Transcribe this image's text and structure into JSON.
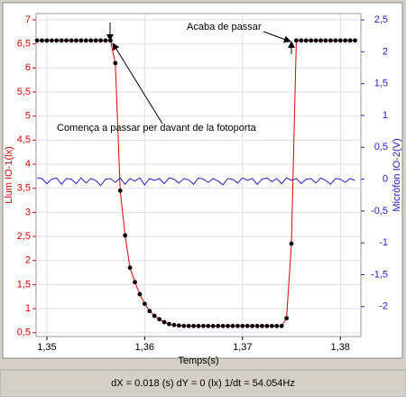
{
  "chart_data": {
    "type": "line",
    "x_label": "Temps(s)",
    "y_label": "Llum IO-1(lx)",
    "y2_label": "Micròfon IO-2(V)",
    "status": "dX = 0.018 (s) dY = 0 (lx)  1/dt = 54.054Hz",
    "annotations": [
      "Acaba de passar",
      "Comença a passar per davant de la fotoporta"
    ],
    "grid": true,
    "x": [
      1.349,
      1.3495,
      1.35,
      1.3505,
      1.351,
      1.3515,
      1.352,
      1.3525,
      1.353,
      1.3535,
      1.354,
      1.3545,
      1.355,
      1.3555,
      1.356,
      1.3565,
      1.357,
      1.3575,
      1.358,
      1.3585,
      1.359,
      1.3595,
      1.36,
      1.3605,
      1.361,
      1.3615,
      1.362,
      1.3625,
      1.363,
      1.3635,
      1.364,
      1.3645,
      1.365,
      1.3655,
      1.366,
      1.3665,
      1.367,
      1.3675,
      1.368,
      1.3685,
      1.369,
      1.3695,
      1.37,
      1.3705,
      1.371,
      1.3715,
      1.372,
      1.3725,
      1.373,
      1.3735,
      1.374,
      1.3745,
      1.375,
      1.3755,
      1.376,
      1.3765,
      1.377,
      1.3775,
      1.378,
      1.3785,
      1.379,
      1.3795,
      1.38,
      1.3805,
      1.381,
      1.3815
    ],
    "series": [
      {
        "name": "Llum IO-1(lx)",
        "color": "#e00000",
        "marker_color": "#000000",
        "values": [
          6.57,
          6.57,
          6.57,
          6.57,
          6.57,
          6.57,
          6.57,
          6.57,
          6.57,
          6.57,
          6.57,
          6.57,
          6.57,
          6.57,
          6.57,
          6.57,
          6.1,
          3.45,
          2.52,
          1.85,
          1.55,
          1.3,
          1.1,
          0.95,
          0.85,
          0.78,
          0.72,
          0.68,
          0.66,
          0.65,
          0.64,
          0.64,
          0.64,
          0.64,
          0.64,
          0.64,
          0.64,
          0.64,
          0.64,
          0.64,
          0.64,
          0.64,
          0.64,
          0.64,
          0.64,
          0.64,
          0.64,
          0.64,
          0.64,
          0.64,
          0.64,
          0.8,
          2.35,
          6.57,
          6.57,
          6.57,
          6.57,
          6.57,
          6.57,
          6.57,
          6.57,
          6.57,
          6.57,
          6.57,
          6.57,
          6.57
        ]
      },
      {
        "name": "Micròfon IO-2(V)",
        "color": "#2020c8",
        "axis": "y2",
        "values": [
          0.02,
          0.01,
          -0.07,
          0.0,
          0.02,
          -0.08,
          0.01,
          0.0,
          -0.07,
          0.02,
          -0.06,
          0.01,
          -0.02,
          -0.1,
          0.0,
          0.01,
          -0.05,
          0.02,
          -0.08,
          0.01,
          -0.03,
          0.02,
          -0.09,
          0.01,
          -0.02,
          0.01,
          -0.07,
          0.02,
          0.0,
          -0.06,
          0.01,
          -0.01,
          -0.08,
          0.02,
          0.0,
          -0.05,
          0.01,
          -0.03,
          -0.09,
          0.01,
          0.0,
          -0.06,
          0.02,
          -0.02,
          0.01,
          -0.08,
          0.0,
          0.02,
          -0.04,
          0.01,
          -0.07,
          0.02,
          -0.02,
          0.01,
          -0.07,
          0.0,
          0.01,
          -0.06,
          0.02,
          -0.02,
          -0.08,
          0.01,
          0.0,
          -0.05,
          0.01,
          -0.02
        ]
      }
    ],
    "xlim": [
      1.3489,
      1.3821
    ],
    "xticks": [
      {
        "value": 1.35,
        "label": "1,35"
      },
      {
        "value": 1.36,
        "label": "1,36"
      },
      {
        "value": 1.37,
        "label": "1,37"
      },
      {
        "value": 1.38,
        "label": "1,38"
      }
    ],
    "ylim": [
      0.42,
      7.13
    ],
    "yticks": [
      {
        "value": 0.5,
        "label": "0,5"
      },
      1,
      {
        "value": 1.5,
        "label": "1,5"
      },
      2,
      {
        "value": 2.5,
        "label": "2,5"
      },
      3,
      {
        "value": 3.5,
        "label": "3,5"
      },
      4,
      {
        "value": 4.5,
        "label": "4,5"
      },
      5,
      {
        "value": 5.5,
        "label": "5,5"
      },
      6,
      {
        "value": 6.5,
        "label": "6,5"
      },
      7
    ],
    "y2lim": [
      -2.47,
      2.6
    ],
    "y2ticks": [
      -2,
      {
        "value": -1.5,
        "label": "-1,5"
      },
      -1,
      {
        "value": -0.5,
        "label": "-0,5"
      },
      0,
      {
        "value": 0.5,
        "label": "0,5"
      },
      1,
      {
        "value": 1.5,
        "label": "1,5"
      },
      2,
      {
        "value": 2.5,
        "label": "2,5"
      }
    ]
  }
}
